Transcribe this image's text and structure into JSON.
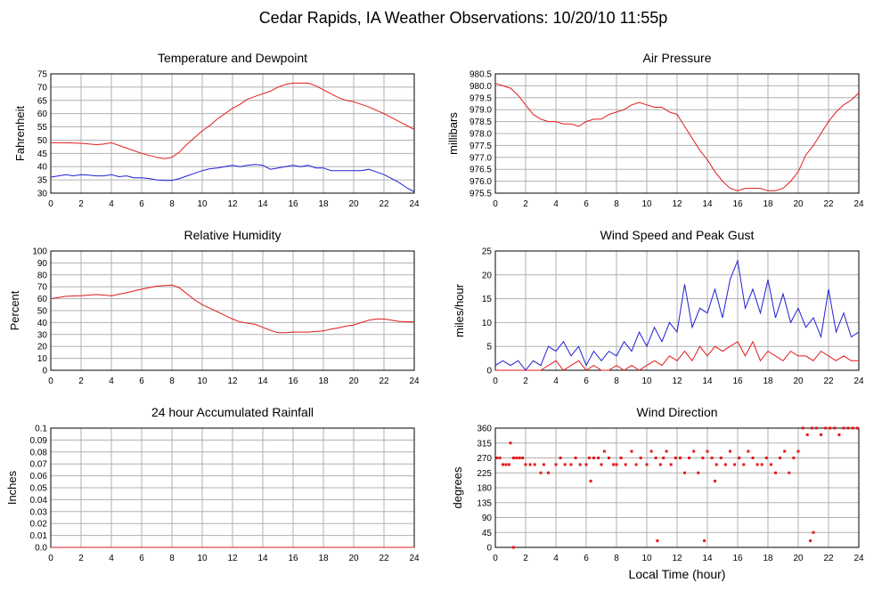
{
  "page": {
    "title": "Cedar Rapids, IA Weather Observations: 10/20/10 11:55p",
    "xlabel": "Local Time (hour)"
  },
  "chart_data": [
    {
      "id": "temp",
      "type": "line",
      "title": "Temperature and Dewpoint",
      "xlabel": "",
      "ylabel": "Fahrenheit",
      "xlim": [
        0,
        24
      ],
      "ylim": [
        30,
        75
      ],
      "xticks": [
        0,
        2,
        4,
        6,
        8,
        10,
        12,
        14,
        16,
        18,
        20,
        22,
        24
      ],
      "yticks": [
        30,
        35,
        40,
        45,
        50,
        55,
        60,
        65,
        70,
        75
      ],
      "grid": true,
      "series": [
        {
          "color": "#e31a1c",
          "x": [
            0,
            1,
            2,
            3,
            3.5,
            4,
            5,
            6,
            7,
            7.5,
            8,
            8.5,
            9,
            9.5,
            10,
            10.5,
            11,
            11.5,
            12,
            12.5,
            13,
            13.5,
            14,
            14.5,
            15,
            15.5,
            16,
            16.5,
            17,
            17.5,
            18,
            18.5,
            19,
            19.5,
            20,
            21,
            22,
            23,
            24
          ],
          "values": [
            49,
            49,
            48.8,
            48.3,
            48.5,
            49,
            47,
            45,
            43.5,
            43,
            43.5,
            45.5,
            48.5,
            51,
            53.5,
            55.5,
            58,
            60,
            62,
            63.5,
            65.5,
            66.5,
            67.5,
            68.5,
            70,
            71,
            71.5,
            71.5,
            71.5,
            70.5,
            69,
            67.5,
            66,
            65,
            64.5,
            62.5,
            60,
            57,
            54
          ]
        },
        {
          "color": "#1f1fd6",
          "x": [
            0,
            0.5,
            1,
            1.5,
            2,
            2.5,
            3,
            3.5,
            4,
            4.5,
            5,
            5.5,
            6,
            6.5,
            7,
            7.5,
            8,
            8.5,
            9,
            9.5,
            10,
            10.5,
            11,
            11.5,
            12,
            12.5,
            13,
            13.5,
            14,
            14.5,
            15,
            15.5,
            16,
            16.5,
            17,
            17.5,
            18,
            18.5,
            19,
            19.5,
            20,
            20.5,
            21,
            21.5,
            22,
            22.5,
            23,
            23.5,
            24
          ],
          "values": [
            36,
            36.5,
            37,
            36.5,
            37,
            36.8,
            36.5,
            36.5,
            37,
            36.2,
            36.5,
            35.8,
            35.8,
            35.5,
            35,
            34.8,
            34.8,
            35.5,
            36.5,
            37.5,
            38.5,
            39.2,
            39.5,
            40,
            40.5,
            40,
            40.5,
            40.8,
            40.5,
            39,
            39.5,
            40,
            40.5,
            40,
            40.5,
            39.5,
            39.5,
            38.5,
            38.5,
            38.5,
            38.5,
            38.5,
            39,
            38,
            37,
            35.5,
            34,
            32,
            30.5
          ]
        }
      ]
    },
    {
      "id": "pressure",
      "type": "line",
      "title": "Air Pressure",
      "xlabel": "",
      "ylabel": "millibars",
      "xlim": [
        0,
        24
      ],
      "ylim": [
        975.5,
        980.5
      ],
      "xticks": [
        0,
        2,
        4,
        6,
        8,
        10,
        12,
        14,
        16,
        18,
        20,
        22,
        24
      ],
      "yticks": [
        975.5,
        976.0,
        976.5,
        977.0,
        977.5,
        978.0,
        978.5,
        979.0,
        979.5,
        980.0,
        980.5
      ],
      "grid": true,
      "series": [
        {
          "color": "#e31a1c",
          "x": [
            0,
            0.5,
            1,
            1.5,
            2,
            2.5,
            3,
            3.5,
            4,
            4.5,
            5,
            5.5,
            6,
            6.5,
            7,
            7.5,
            8,
            8.5,
            9,
            9.5,
            10,
            10.5,
            11,
            11.5,
            12,
            12.5,
            13,
            13.5,
            14,
            14.5,
            15,
            15.5,
            16,
            16.5,
            17,
            17.5,
            18,
            18.5,
            19,
            19.5,
            20,
            20.5,
            21,
            21.5,
            22,
            22.5,
            23,
            23.5,
            24
          ],
          "values": [
            980.1,
            980.0,
            979.9,
            979.6,
            979.2,
            978.8,
            978.6,
            978.5,
            978.5,
            978.4,
            978.4,
            978.3,
            978.5,
            978.6,
            978.6,
            978.8,
            978.9,
            979.0,
            979.2,
            979.3,
            979.2,
            979.1,
            979.1,
            978.9,
            978.8,
            978.3,
            977.8,
            977.3,
            976.9,
            976.4,
            976.0,
            975.7,
            975.6,
            975.7,
            975.7,
            975.7,
            975.6,
            975.6,
            975.7,
            976.0,
            976.4,
            977.1,
            977.5,
            978.0,
            978.5,
            978.9,
            979.2,
            979.4,
            979.7
          ]
        }
      ]
    },
    {
      "id": "rh",
      "type": "line",
      "title": "Relative Humidity",
      "xlabel": "",
      "ylabel": "Percent",
      "xlim": [
        0,
        24
      ],
      "ylim": [
        0,
        100
      ],
      "xticks": [
        0,
        2,
        4,
        6,
        8,
        10,
        12,
        14,
        16,
        18,
        20,
        22,
        24
      ],
      "yticks": [
        0,
        10,
        20,
        30,
        40,
        50,
        60,
        70,
        80,
        90,
        100
      ],
      "grid": true,
      "series": [
        {
          "color": "#e31a1c",
          "x": [
            0,
            1,
            2,
            3,
            4,
            5,
            6,
            7,
            7.5,
            8,
            8.5,
            9,
            9.5,
            10,
            10.5,
            11,
            11.5,
            12,
            12.5,
            13,
            13.5,
            14,
            14.5,
            15,
            15.5,
            16,
            16.5,
            17,
            17.5,
            18,
            18.5,
            19,
            19.5,
            20,
            20.5,
            21,
            21.5,
            22,
            23,
            24
          ],
          "values": [
            60,
            62,
            62.5,
            63.5,
            62.5,
            65,
            68,
            70.5,
            71,
            71.5,
            69,
            64,
            59,
            55,
            52,
            49,
            46,
            43,
            40.5,
            39.5,
            38.5,
            36,
            33.5,
            31.5,
            31.5,
            32,
            32,
            32,
            32.5,
            33,
            34.5,
            35.5,
            37,
            38,
            40,
            42,
            43,
            43,
            41,
            40.5
          ]
        }
      ]
    },
    {
      "id": "wind",
      "type": "line",
      "title": "Wind Speed and Peak Gust",
      "xlabel": "",
      "ylabel": "miles/hour",
      "xlim": [
        0,
        24
      ],
      "ylim": [
        0,
        25
      ],
      "xticks": [
        0,
        2,
        4,
        6,
        8,
        10,
        12,
        14,
        16,
        18,
        20,
        22,
        24
      ],
      "yticks": [
        0,
        5,
        10,
        15,
        20,
        25
      ],
      "grid": true,
      "series": [
        {
          "color": "#1f1fd6",
          "x": [
            0,
            0.5,
            1,
            1.5,
            2,
            2.5,
            3,
            3.5,
            4,
            4.5,
            5,
            5.5,
            6,
            6.5,
            7,
            7.5,
            8,
            8.5,
            9,
            9.5,
            10,
            10.5,
            11,
            11.5,
            12,
            12.5,
            13,
            13.5,
            14,
            14.5,
            15,
            15.5,
            16,
            16.5,
            17,
            17.5,
            18,
            18.5,
            19,
            19.5,
            20,
            20.5,
            21,
            21.5,
            22,
            22.5,
            23,
            23.5,
            24
          ],
          "values": [
            1,
            2,
            1,
            2,
            0,
            2,
            1,
            5,
            4,
            6,
            3,
            5,
            1,
            4,
            2,
            4,
            3,
            6,
            4,
            8,
            5,
            9,
            6,
            10,
            8,
            18,
            9,
            13,
            12,
            17,
            11,
            19,
            23,
            13,
            17,
            12,
            19,
            11,
            16,
            10,
            13,
            9,
            11,
            7,
            17,
            8,
            12,
            7,
            8
          ]
        },
        {
          "color": "#e31a1c",
          "x": [
            0,
            3,
            3.5,
            4,
            4.5,
            5,
            5.5,
            6,
            6.5,
            7,
            7.5,
            8,
            8.5,
            9,
            9.5,
            10,
            10.5,
            11,
            11.5,
            12,
            12.5,
            13,
            13.5,
            14,
            14.5,
            15,
            15.5,
            16,
            16.5,
            17,
            17.5,
            18,
            18.5,
            19,
            19.5,
            20,
            20.5,
            21,
            21.5,
            22,
            22.5,
            23,
            23.5,
            24
          ],
          "values": [
            0,
            0,
            1,
            2,
            0,
            1,
            2,
            0,
            1,
            0,
            0,
            1,
            0,
            1,
            0,
            1,
            2,
            1,
            3,
            2,
            4,
            2,
            5,
            3,
            5,
            4,
            5,
            6,
            3,
            6,
            2,
            4,
            3,
            2,
            4,
            3,
            3,
            2,
            4,
            3,
            2,
            3,
            2,
            2
          ]
        }
      ]
    },
    {
      "id": "rain",
      "type": "line",
      "title": "24 hour Accumulated Rainfall",
      "xlabel": "",
      "ylabel": "Inches",
      "xlim": [
        0,
        24
      ],
      "ylim": [
        0,
        0.1
      ],
      "xticks": [
        0,
        2,
        4,
        6,
        8,
        10,
        12,
        14,
        16,
        18,
        20,
        22,
        24
      ],
      "yticks": [
        0.0,
        0.01,
        0.02,
        0.03,
        0.04,
        0.05,
        0.06,
        0.07,
        0.08,
        0.09,
        0.1
      ],
      "ytick_labels": [
        "0.0",
        "0.01",
        "0.02",
        "0.03",
        "0.04",
        "0.05",
        "0.06",
        "0.07",
        "0.08",
        "0.09",
        "0.1"
      ],
      "grid": true,
      "series": [
        {
          "color": "#e31a1c",
          "x": [
            0,
            24
          ],
          "values": [
            0,
            0
          ]
        }
      ]
    },
    {
      "id": "dir",
      "type": "scatter",
      "title": "Wind Direction",
      "xlabel": "Local Time (hour)",
      "ylabel": "degrees",
      "xlim": [
        0,
        24
      ],
      "ylim": [
        0,
        360
      ],
      "xticks": [
        0,
        2,
        4,
        6,
        8,
        10,
        12,
        14,
        16,
        18,
        20,
        22,
        24
      ],
      "yticks": [
        0,
        45,
        90,
        135,
        180,
        225,
        270,
        315,
        360
      ],
      "grid": true,
      "series": [
        {
          "color": "#e31a1c",
          "x": [
            0.1,
            0.3,
            0.5,
            0.7,
            0.9,
            1.0,
            1.2,
            1.4,
            1.6,
            1.8,
            2.0,
            2.3,
            2.6,
            3.0,
            3.2,
            3.5,
            4.0,
            4.3,
            4.6,
            5.0,
            5.3,
            5.6,
            6.0,
            6.2,
            6.5,
            6.8,
            7.0,
            7.2,
            7.5,
            7.8,
            8.0,
            8.3,
            8.6,
            9.0,
            9.3,
            9.6,
            10.0,
            10.3,
            10.6,
            10.9,
            11.1,
            11.3,
            11.6,
            11.9,
            12.2,
            12.5,
            12.8,
            13.1,
            13.4,
            13.7,
            14.0,
            14.3,
            14.6,
            14.9,
            15.2,
            15.5,
            15.8,
            16.1,
            16.4,
            16.7,
            17.0,
            17.3,
            17.6,
            17.9,
            18.2,
            18.5,
            18.8,
            19.1,
            19.4,
            19.7,
            20.0,
            20.3,
            20.6,
            20.9,
            21.2,
            21.5,
            21.8,
            22.1,
            22.4,
            22.7,
            23.0,
            23.3,
            23.6,
            23.9,
            1.2,
            6.3,
            10.7,
            13.8,
            14.5,
            20.8,
            21.0
          ],
          "values": [
            270,
            270,
            250,
            250,
            250,
            315,
            270,
            270,
            270,
            270,
            250,
            250,
            250,
            225,
            250,
            225,
            250,
            270,
            250,
            250,
            270,
            250,
            250,
            270,
            270,
            270,
            250,
            290,
            270,
            250,
            250,
            270,
            250,
            290,
            250,
            270,
            250,
            290,
            270,
            250,
            270,
            290,
            250,
            270,
            270,
            225,
            270,
            290,
            225,
            270,
            290,
            270,
            250,
            270,
            250,
            290,
            250,
            270,
            250,
            290,
            270,
            250,
            250,
            270,
            250,
            225,
            270,
            290,
            225,
            270,
            290,
            360,
            340,
            360,
            360,
            340,
            360,
            360,
            360,
            340,
            360,
            360,
            360,
            360,
            0,
            200,
            20,
            20,
            200,
            20,
            45
          ]
        }
      ]
    }
  ]
}
